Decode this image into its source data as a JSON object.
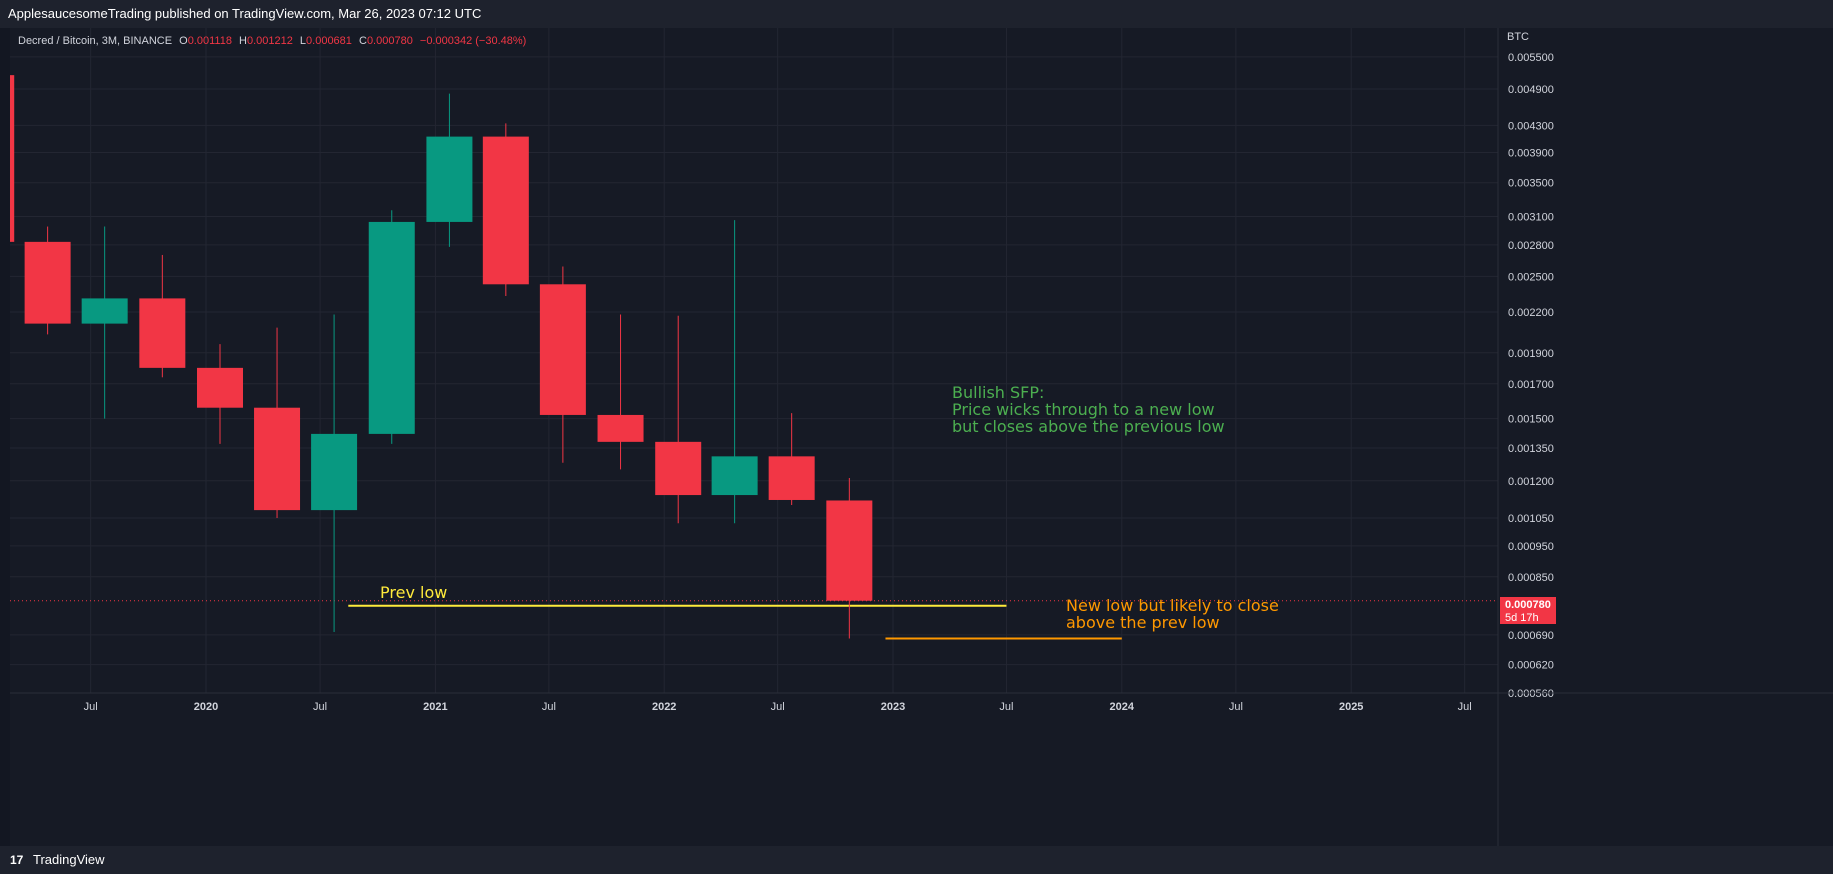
{
  "header": {
    "published_text": "ApplesaucesomeTrading published on TradingView.com, Mar 26, 2023 07:12 UTC"
  },
  "legend": {
    "symbol": "Decred / Bitcoin, 3M, BINANCE",
    "open_label": "O",
    "open": "0.001118",
    "high_label": "H",
    "high": "0.001212",
    "low_label": "L",
    "low": "0.000681",
    "close_label": "C",
    "close": "0.000780",
    "change": "−0.000342 (−30.48%)"
  },
  "footer": {
    "logo_glyph": "17",
    "brand": "TradingView"
  },
  "colors": {
    "up": "#089981",
    "down": "#f23645",
    "yellow": "#ffeb3b",
    "orange": "#ff9800",
    "green_text": "#4caf50"
  },
  "chart_data": {
    "type": "candlestick",
    "title": "Decred / Bitcoin, 3M, BINANCE",
    "currency_label": "BTC",
    "y_scale": "log",
    "ylim": [
      0.00056,
      0.0061
    ],
    "y_ticks": [
      "0.005500",
      "0.004900",
      "0.004300",
      "0.003900",
      "0.003500",
      "0.003100",
      "0.002800",
      "0.002500",
      "0.002200",
      "0.001900",
      "0.001700",
      "0.001500",
      "0.001350",
      "0.001200",
      "0.001050",
      "0.000950",
      "0.000850",
      "0.000690",
      "0.000620",
      "0.000560"
    ],
    "x_ticks": [
      {
        "label": "Jul",
        "date": "2019-07-01",
        "bold": false
      },
      {
        "label": "2020",
        "date": "2020-01-01",
        "bold": true
      },
      {
        "label": "Jul",
        "date": "2020-07-01",
        "bold": false
      },
      {
        "label": "2021",
        "date": "2021-01-01",
        "bold": true
      },
      {
        "label": "Jul",
        "date": "2021-07-01",
        "bold": false
      },
      {
        "label": "2022",
        "date": "2022-01-01",
        "bold": true
      },
      {
        "label": "Jul",
        "date": "2022-07-01",
        "bold": false
      },
      {
        "label": "2023",
        "date": "2023-01-01",
        "bold": true
      },
      {
        "label": "Jul",
        "date": "2023-07-01",
        "bold": false
      },
      {
        "label": "2024",
        "date": "2024-01-01",
        "bold": true
      },
      {
        "label": "Jul",
        "date": "2024-07-01",
        "bold": false
      },
      {
        "label": "2025",
        "date": "2025-01-01",
        "bold": true
      },
      {
        "label": "Jul",
        "date": "2025-07-01",
        "bold": false
      }
    ],
    "candles": [
      {
        "date": "2019-01-01",
        "open": 0.00515,
        "high": 0.00538,
        "low": 0.00268,
        "close": 0.00283
      },
      {
        "date": "2019-04-01",
        "open": 0.00283,
        "high": 0.00299,
        "low": 0.00203,
        "close": 0.00211
      },
      {
        "date": "2019-07-01",
        "open": 0.00211,
        "high": 0.00299,
        "low": 0.0015,
        "close": 0.00231
      },
      {
        "date": "2019-10-01",
        "open": 0.00231,
        "high": 0.0027,
        "low": 0.00174,
        "close": 0.0018
      },
      {
        "date": "2020-01-01",
        "open": 0.0018,
        "high": 0.00196,
        "low": 0.00137,
        "close": 0.00156
      },
      {
        "date": "2020-04-01",
        "open": 0.00156,
        "high": 0.00208,
        "low": 0.00105,
        "close": 0.00108
      },
      {
        "date": "2020-07-01",
        "open": 0.00108,
        "high": 0.00218,
        "low": 0.000697,
        "close": 0.00142
      },
      {
        "date": "2020-10-01",
        "open": 0.00142,
        "high": 0.00317,
        "low": 0.00137,
        "close": 0.00304
      },
      {
        "date": "2021-01-01",
        "open": 0.00304,
        "high": 0.00482,
        "low": 0.00278,
        "close": 0.00413
      },
      {
        "date": "2021-04-01",
        "open": 0.00413,
        "high": 0.00433,
        "low": 0.00233,
        "close": 0.00243
      },
      {
        "date": "2021-07-01",
        "open": 0.00243,
        "high": 0.00259,
        "low": 0.00128,
        "close": 0.00152
      },
      {
        "date": "2021-10-01",
        "open": 0.00152,
        "high": 0.00218,
        "low": 0.00125,
        "close": 0.00138
      },
      {
        "date": "2022-01-01",
        "open": 0.00138,
        "high": 0.00217,
        "low": 0.00103,
        "close": 0.00114
      },
      {
        "date": "2022-04-01",
        "open": 0.00114,
        "high": 0.00306,
        "low": 0.00103,
        "close": 0.00131
      },
      {
        "date": "2022-07-01",
        "open": 0.00131,
        "high": 0.00153,
        "low": 0.0011,
        "close": 0.00112
      },
      {
        "date": "2022-10-01",
        "open": 0.001118,
        "high": 0.001212,
        "low": 0.000681,
        "close": 0.00078
      }
    ],
    "current_price": {
      "value": "0.000780",
      "countdown": "5d 17h"
    },
    "annotations": [
      {
        "id": "prev_low",
        "text": "Prev low",
        "color": "#ffeb3b",
        "price": 0.000766,
        "from": "2020-08-15",
        "to": "2023-07-01"
      },
      {
        "id": "new_low",
        "line1": "New low but likely to close",
        "line2": "above the prev low",
        "color": "#ff9800",
        "price": 0.000681,
        "from": "2022-12-20",
        "to": "2024-01-01"
      },
      {
        "id": "sfp",
        "line1": "Bullish SFP:",
        "line2": "Price wicks through to a new low",
        "line3": "but closes above the previous low",
        "color": "#4caf50"
      }
    ]
  }
}
